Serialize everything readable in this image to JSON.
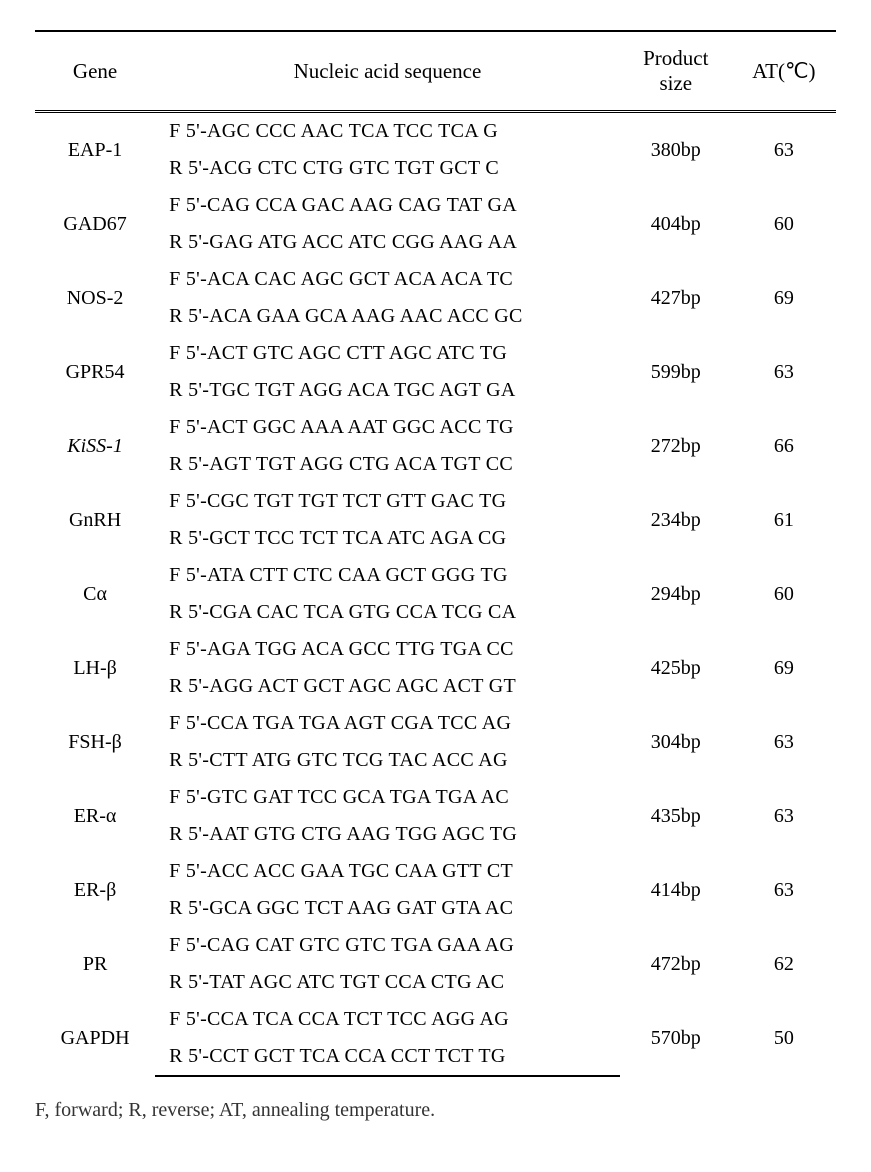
{
  "table": {
    "headers": {
      "gene": "Gene",
      "sequence": "Nucleic acid sequence",
      "product_size_line1": "Product",
      "product_size_line2": "size",
      "at": "AT(℃)"
    },
    "rows": [
      {
        "gene": "EAP-1",
        "italic": false,
        "fwd": "F 5'-AGC CCC AAC TCA TCC TCA G",
        "rev": "R 5'-ACG CTC CTG GTC TGT GCT C",
        "size": "380bp",
        "at": "63"
      },
      {
        "gene": "GAD67",
        "italic": false,
        "fwd": "F 5'-CAG CCA GAC AAG CAG TAT GA",
        "rev": "R 5'-GAG ATG ACC ATC CGG AAG AA",
        "size": "404bp",
        "at": "60"
      },
      {
        "gene": "NOS-2",
        "italic": false,
        "fwd": "F 5'-ACA CAC AGC GCT ACA ACA TC",
        "rev": "R 5'-ACA GAA GCA AAG AAC ACC GC",
        "size": "427bp",
        "at": "69"
      },
      {
        "gene": "GPR54",
        "italic": false,
        "fwd": "F 5'-ACT GTC AGC CTT AGC ATC TG",
        "rev": "R 5'-TGC TGT AGG ACA TGC AGT GA",
        "size": "599bp",
        "at": "63"
      },
      {
        "gene": "KiSS-1",
        "italic": true,
        "fwd": "F 5'-ACT GGC AAA AAT GGC ACC TG",
        "rev": "R 5'-AGT TGT AGG CTG ACA TGT CC",
        "size": "272bp",
        "at": "66"
      },
      {
        "gene": "GnRH",
        "italic": false,
        "fwd": "F 5'-CGC TGT TGT TCT GTT GAC TG",
        "rev": "R 5'-GCT TCC TCT TCA ATC AGA CG",
        "size": "234bp",
        "at": "61"
      },
      {
        "gene": "Cα",
        "italic": false,
        "fwd": "F 5'-ATA CTT CTC CAA GCT GGG TG",
        "rev": "R 5'-CGA CAC TCA GTG CCA TCG CA",
        "size": "294bp",
        "at": "60"
      },
      {
        "gene": "LH-β",
        "italic": false,
        "fwd": "F 5'-AGA TGG ACA GCC TTG TGA CC",
        "rev": "R 5'-AGG ACT GCT AGC AGC ACT GT",
        "size": "425bp",
        "at": "69"
      },
      {
        "gene": "FSH-β",
        "italic": false,
        "fwd": "F 5'-CCA TGA TGA AGT CGA TCC AG",
        "rev": "R 5'-CTT ATG GTC TCG TAC ACC AG",
        "size": "304bp",
        "at": "63"
      },
      {
        "gene": "ER-α",
        "italic": false,
        "fwd": "F 5'-GTC GAT TCC GCA TGA TGA AC",
        "rev": "R 5'-AAT GTG CTG AAG TGG AGC TG",
        "size": "435bp",
        "at": "63"
      },
      {
        "gene": "ER-β",
        "italic": false,
        "fwd": "F 5'-ACC ACC GAA TGC CAA GTT CT",
        "rev": "R 5'-GCA GGC TCT AAG GAT GTA AC",
        "size": "414bp",
        "at": "63"
      },
      {
        "gene": "PR",
        "italic": false,
        "fwd": "F 5'-CAG CAT GTC GTC TGA GAA AG",
        "rev": "R 5'-TAT AGC ATC TGT CCA CTG AC",
        "size": "472bp",
        "at": "62"
      },
      {
        "gene": "GAPDH",
        "italic": false,
        "fwd": "F 5'-CCA TCA CCA TCT TCC AGG AG",
        "rev": "R 5'-CCT GCT TCA CCA CCT TCT TG",
        "size": "570bp",
        "at": "50"
      }
    ]
  },
  "caption": "F, forward; R, reverse; AT, annealing temperature.",
  "style": {
    "background_color": "#ffffff",
    "text_color": "#000000",
    "border_color": "#000000",
    "header_fontsize": 21,
    "body_fontsize": 20,
    "caption_fontsize": 20
  }
}
